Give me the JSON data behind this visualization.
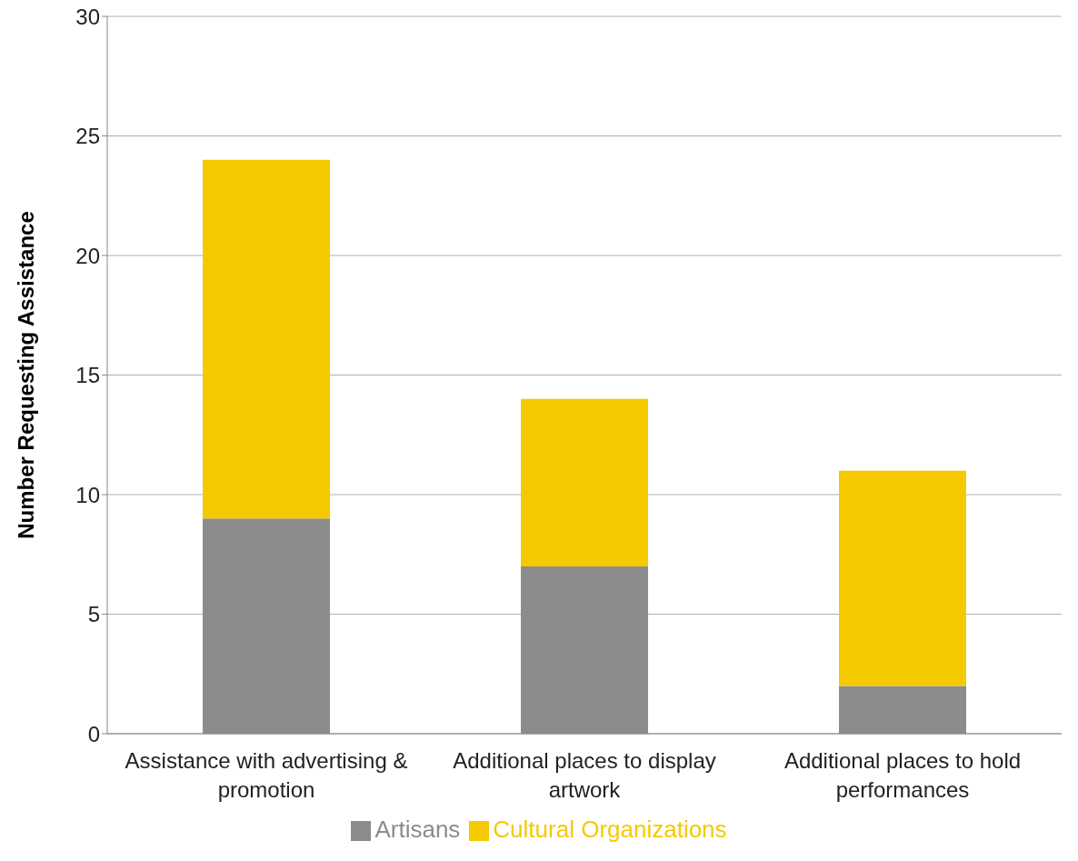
{
  "chart_data": {
    "type": "bar",
    "stacked": true,
    "ylabel": "Number Requesting Assistance",
    "categories": [
      "Assistance with advertising & promotion",
      "Additional places to display artwork",
      "Additional places to hold performances"
    ],
    "series": [
      {
        "name": "Artisans",
        "color": "#8c8c8c",
        "values": [
          9,
          7,
          2
        ]
      },
      {
        "name": "Cultural Organizations",
        "color": "#f5c900",
        "values": [
          15,
          7,
          9
        ]
      }
    ],
    "ylim": [
      0,
      30
    ],
    "yticks": [
      0,
      5,
      10,
      15,
      20,
      25,
      30
    ],
    "grid": "y",
    "legend": "bottom"
  }
}
